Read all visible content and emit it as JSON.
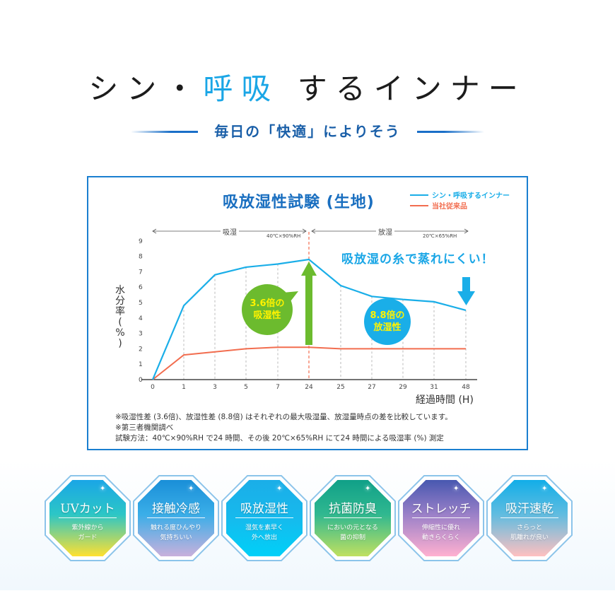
{
  "header": {
    "title_parts": [
      "シン・",
      "呼",
      "吸",
      " するインナー"
    ],
    "title_highlight_note": "O-shaped marks in blue on 呼 and 吸",
    "subtitle": "毎日の「快適」によりそう"
  },
  "colors": {
    "accent_blue": "#1aa6e6",
    "frame_blue": "#1a7fd0",
    "title_blue": "#1a6fc0",
    "series_new": "#1aaee8",
    "series_old": "#f26d4f",
    "green": "#6cbb2e",
    "yellow_text": "#fff200"
  },
  "chart_data": {
    "type": "line",
    "title": "吸放湿性試験 (生地)",
    "xlabel": "経過時間 (H)",
    "ylabel": "水分率 (%)",
    "ylim": [
      0,
      9
    ],
    "yticks": [
      0,
      1,
      2,
      3,
      4,
      5,
      6,
      7,
      8,
      9
    ],
    "categories": [
      "0",
      "1",
      "3",
      "5",
      "7",
      "24",
      "25",
      "27",
      "29",
      "31",
      "48"
    ],
    "series": [
      {
        "name": "シン・呼吸するインナー",
        "color": "#1aaee8",
        "values": [
          0,
          4.8,
          6.8,
          7.3,
          7.5,
          7.8,
          6.1,
          5.4,
          5.2,
          5.05,
          4.5
        ]
      },
      {
        "name": "当社従来品",
        "color": "#f26d4f",
        "values": [
          0,
          1.6,
          1.8,
          2.0,
          2.1,
          2.1,
          2.0,
          2.0,
          2.0,
          2.0,
          2.0
        ]
      }
    ],
    "phases": [
      {
        "label": "吸湿",
        "condition": "40℃×90%RH",
        "range": [
          "0",
          "24"
        ]
      },
      {
        "label": "放湿",
        "condition": "20℃×65%RH",
        "range": [
          "24",
          "48"
        ]
      }
    ],
    "grid": "vertical dashed at each category",
    "legend_position": "top-right",
    "annotations": [
      {
        "text": "3.6倍の吸湿性",
        "type": "green bubble + up arrow at 24h"
      },
      {
        "text": "8.8倍の放湿性",
        "type": "blue bubble"
      },
      {
        "text": "吸放湿の糸で蒸れにくい！",
        "type": "callout with down arrow at 48h"
      }
    ]
  },
  "chart": {
    "title": "吸放湿性試験 (生地)",
    "legend": [
      {
        "label": "シン・呼吸するインナー",
        "color": "#1aaee8"
      },
      {
        "label": "当社従来品",
        "color": "#f26d4f"
      }
    ],
    "phase_absorb": "吸湿",
    "phase_absorb_cond": "40℃×90%RH",
    "phase_release": "放湿",
    "phase_release_cond": "20℃×65%RH",
    "ylabel_chars": [
      "水",
      "分",
      "率",
      "(",
      "%",
      ")"
    ],
    "xlabel": "経過時間 (H)",
    "callout": "吸放湿の糸で蒸れにくい！",
    "bubble_green": [
      "3.6倍の",
      "吸湿性"
    ],
    "bubble_blue": [
      "8.8倍の",
      "放湿性"
    ],
    "notes": [
      "※吸湿性差 (3.6倍)、放湿性差 (8.8倍) はそれぞれの最大吸湿量、放湿量時点の差を比較しています。",
      "※第三者機関調べ",
      "試験方法：40℃×90%RH で24 時間、その後 20℃×65%RH にて24 時間による吸湿率 (%) 測定"
    ]
  },
  "badges": [
    {
      "title": "UVカット",
      "desc": [
        "紫外線から",
        "ガード"
      ],
      "gradient": [
        "#1aa6e6",
        "#2cc6c6",
        "#ffe030"
      ]
    },
    {
      "title": "接触冷感",
      "desc": [
        "触れる度ひんやり",
        "気持ちいい"
      ],
      "gradient": [
        "#1a8fd8",
        "#3aaee8",
        "#c8b0dc"
      ]
    },
    {
      "title": "吸放湿性",
      "desc": [
        "湿気を素早く",
        "外へ放出"
      ],
      "gradient": [
        "#1aaee8",
        "#18b8ec",
        "#00d0f8"
      ]
    },
    {
      "title": "抗菌防臭",
      "desc": [
        "においの元となる",
        "菌の抑制"
      ],
      "gradient": [
        "#10a088",
        "#30b890",
        "#c0e060"
      ]
    },
    {
      "title": "ストレッチ",
      "desc": [
        "伸縮性に優れ",
        "動きらくらく"
      ],
      "gradient": [
        "#4858b0",
        "#9a80c8",
        "#ffb0d0"
      ]
    },
    {
      "title": "吸汗速乾",
      "desc": [
        "さらっと",
        "肌離れが良い"
      ],
      "gradient": [
        "#12aee8",
        "#60bce0",
        "#ffc0c0"
      ]
    }
  ]
}
